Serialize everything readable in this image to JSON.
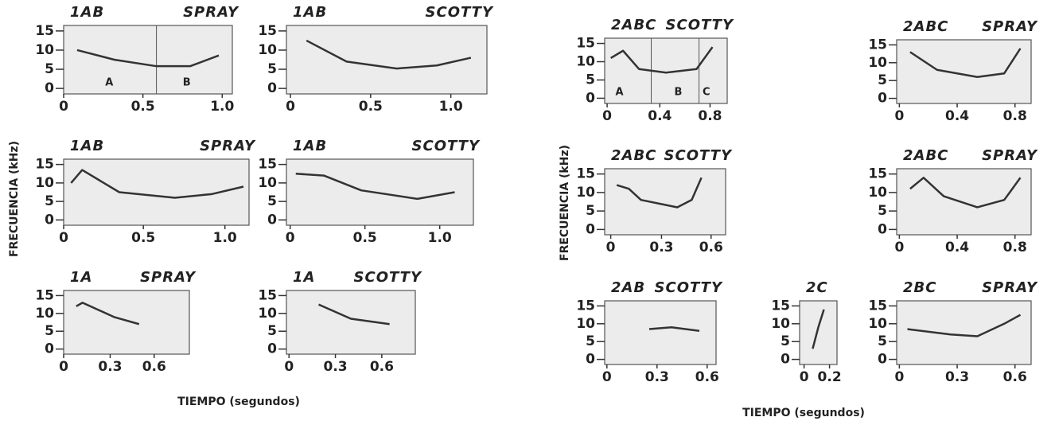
{
  "left": {
    "y_label": "FRECUENCIA (kHz)",
    "x_label": "TIEMPO (segundos)",
    "panels": [
      {
        "label": "1AB",
        "bird": "SPRAY",
        "yticks": [
          "15",
          "10",
          "5",
          "0"
        ],
        "xticks": [
          "0",
          "0.5",
          "1.0"
        ],
        "segments": [
          "A",
          "B"
        ]
      },
      {
        "label": "1AB",
        "bird": "SCOTTY",
        "yticks": [
          "15",
          "10",
          "5",
          "0"
        ],
        "xticks": [
          "0",
          "0.5",
          "1.0"
        ]
      },
      {
        "label": "1AB",
        "bird": "SPRAY",
        "yticks": [
          "15",
          "10",
          "5",
          "0"
        ],
        "xticks": [
          "0",
          "0.5",
          "1.0"
        ]
      },
      {
        "label": "1AB",
        "bird": "SCOTTY",
        "yticks": [
          "15",
          "10",
          "5",
          "0"
        ],
        "xticks": [
          "0",
          "0.5",
          "1.0"
        ]
      },
      {
        "label": "1A",
        "bird": "SPRAY",
        "yticks": [
          "15",
          "10",
          "5",
          "0"
        ],
        "xticks": [
          "0",
          "0.3",
          "0.6"
        ]
      },
      {
        "label": "1A",
        "bird": "SCOTTY",
        "yticks": [
          "15",
          "10",
          "5",
          "0"
        ],
        "xticks": [
          "0",
          "0.3",
          "0.6"
        ]
      }
    ]
  },
  "right": {
    "y_label": "FRECUENCIA (kHz)",
    "x_label": "TIEMPO (segundos)",
    "panels": [
      {
        "label": "2ABC",
        "bird": "SCOTTY",
        "yticks": [
          "15",
          "10",
          "5",
          "0"
        ],
        "xticks": [
          "0",
          "0.4",
          "0.8"
        ],
        "segments": [
          "A",
          "B",
          "C"
        ]
      },
      {
        "label": "2ABC",
        "bird": "SPRAY",
        "yticks": [
          "15",
          "10",
          "5",
          "0"
        ],
        "xticks": [
          "0",
          "0.4",
          "0.8"
        ]
      },
      {
        "label": "2ABC",
        "bird": "SCOTTY",
        "yticks": [
          "15",
          "10",
          "5",
          "0"
        ],
        "xticks": [
          "0",
          "0.3",
          "0.6"
        ]
      },
      {
        "label": "2ABC",
        "bird": "SPRAY",
        "yticks": [
          "15",
          "10",
          "5",
          "0"
        ],
        "xticks": [
          "0",
          "0.4",
          "0.8"
        ]
      },
      {
        "label": "2AB",
        "bird": "SCOTTY",
        "yticks": [
          "15",
          "10",
          "5",
          "0"
        ],
        "xticks": [
          "0",
          "0.3",
          "0.6"
        ]
      },
      {
        "label": "2C",
        "yticks": [
          "15",
          "10",
          "5",
          "0"
        ],
        "xticks": [
          "0",
          "0.2"
        ]
      },
      {
        "label": "2BC",
        "bird": "SPRAY",
        "yticks": [
          "15",
          "10",
          "5",
          "0"
        ],
        "xticks": [
          "0",
          "0.3",
          "0.6"
        ]
      }
    ]
  }
}
